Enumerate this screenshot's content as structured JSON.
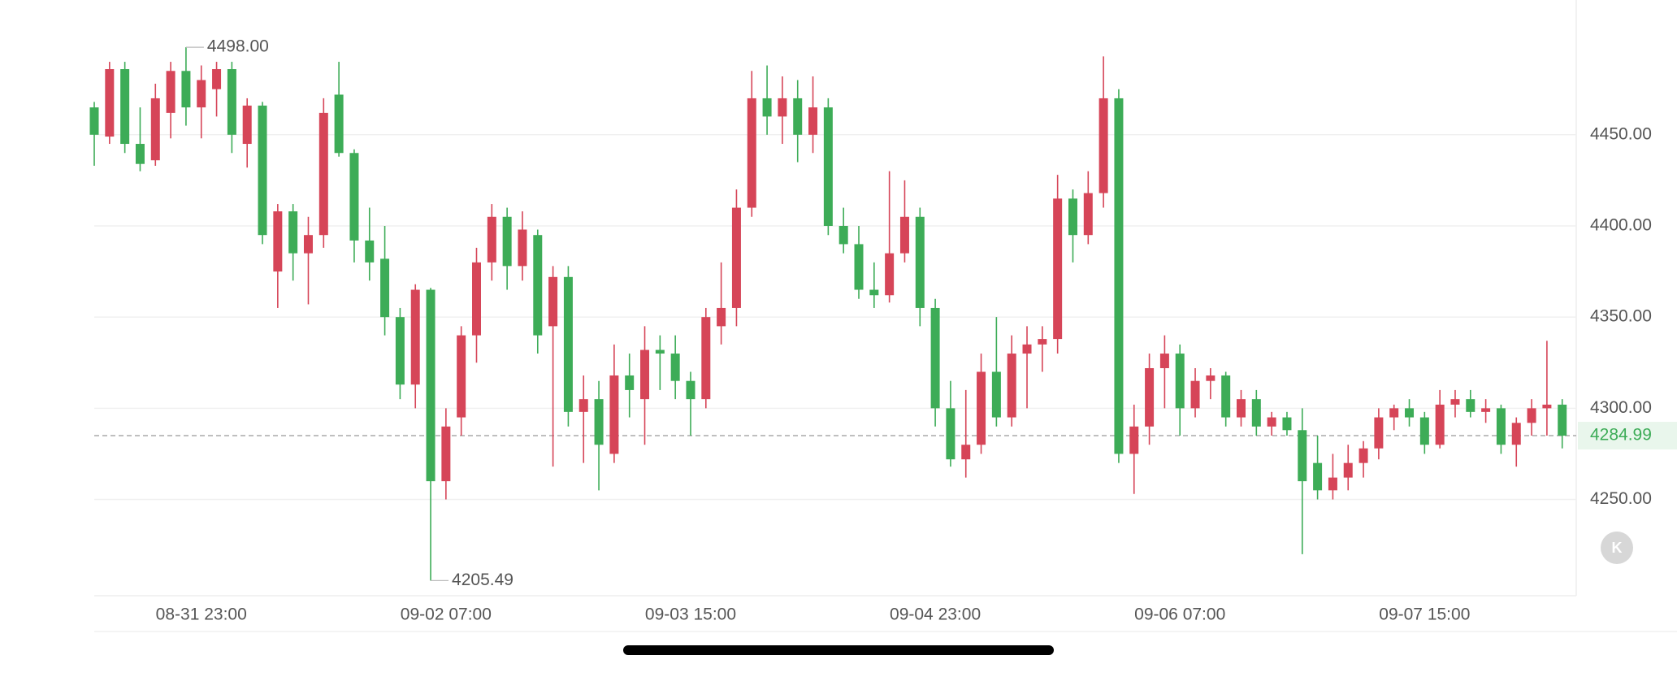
{
  "chart_data": {
    "type": "candlestick",
    "categories": [
      null,
      null,
      null,
      null,
      null,
      null,
      null,
      "08-31 23:00",
      null,
      null,
      null,
      null,
      null,
      null,
      null,
      null,
      null,
      null,
      null,
      null,
      null,
      null,
      null,
      "09-02 07:00",
      null,
      null,
      null,
      null,
      null,
      null,
      null,
      null,
      null,
      null,
      null,
      null,
      null,
      null,
      null,
      "09-03 15:00",
      null,
      null,
      null,
      null,
      null,
      null,
      null,
      null,
      null,
      null,
      null,
      null,
      null,
      null,
      null,
      "09-04 23:00",
      null,
      null,
      null,
      null,
      null,
      null,
      null,
      null,
      null,
      null,
      null,
      null,
      null,
      null,
      null,
      "09-06 07:00",
      null,
      null,
      null,
      null,
      null,
      null,
      null,
      null,
      null,
      null,
      null,
      null,
      null,
      null,
      null,
      "09-07 15:00",
      null,
      null,
      null,
      null,
      null,
      null,
      null,
      null,
      null
    ],
    "open": [
      4465,
      4449,
      4486,
      4445,
      4436,
      4462,
      4485,
      4465,
      4475,
      4486,
      4445,
      4466,
      4375,
      4408,
      4385,
      4395,
      4472,
      4440,
      4392,
      4382,
      4350,
      4313,
      4365,
      4260,
      4295,
      4340,
      4380,
      4405,
      4378,
      4395,
      4345,
      4372,
      4298,
      4305,
      4275,
      4318,
      4305,
      4332,
      4330,
      4315,
      4305,
      4345,
      4355,
      4410,
      4470,
      4460,
      4470,
      4450,
      4465,
      4400,
      4390,
      4365,
      4362,
      4385,
      4405,
      4355,
      4300,
      4272,
      4280,
      4320,
      4295,
      4330,
      4335,
      4338,
      4415,
      4395,
      4418,
      4470,
      4275,
      4290,
      4322,
      4330,
      4300,
      4315,
      4318,
      4295,
      4305,
      4290,
      4295,
      4288,
      4270,
      4255,
      4262,
      4270,
      4278,
      4295,
      4300,
      4295,
      4280,
      4302,
      4305,
      4298,
      4300,
      4280,
      4292,
      4300,
      4302
    ],
    "high": [
      4468,
      4490,
      4490,
      4465,
      4478,
      4490,
      4498,
      4488,
      4490,
      4490,
      4470,
      4468,
      4412,
      4412,
      4405,
      4470,
      4490,
      4442,
      4410,
      4400,
      4355,
      4368,
      4366,
      4300,
      4345,
      4388,
      4412,
      4410,
      4408,
      4398,
      4378,
      4378,
      4318,
      4315,
      4335,
      4330,
      4345,
      4340,
      4340,
      4320,
      4355,
      4380,
      4420,
      4485,
      4488,
      4482,
      4480,
      4482,
      4470,
      4410,
      4400,
      4380,
      4430,
      4425,
      4410,
      4360,
      4315,
      4310,
      4330,
      4350,
      4340,
      4345,
      4345,
      4428,
      4420,
      4430,
      4493,
      4475,
      4302,
      4330,
      4340,
      4335,
      4322,
      4322,
      4320,
      4310,
      4310,
      4298,
      4298,
      4300,
      4285,
      4275,
      4280,
      4282,
      4300,
      4302,
      4305,
      4298,
      4310,
      4310,
      4310,
      4305,
      4302,
      4295,
      4305,
      4337,
      4305
    ],
    "low": [
      4433,
      4445,
      4440,
      4430,
      4433,
      4448,
      4455,
      4448,
      4460,
      4440,
      4432,
      4390,
      4355,
      4370,
      4357,
      4388,
      4438,
      4380,
      4370,
      4340,
      4305,
      4300,
      4205.49,
      4250,
      4285,
      4325,
      4370,
      4365,
      4370,
      4330,
      4268,
      4290,
      4270,
      4255,
      4270,
      4295,
      4280,
      4310,
      4305,
      4285,
      4300,
      4335,
      4345,
      4405,
      4450,
      4445,
      4435,
      4440,
      4395,
      4385,
      4360,
      4355,
      4358,
      4380,
      4345,
      4290,
      4268,
      4262,
      4275,
      4290,
      4290,
      4300,
      4320,
      4330,
      4380,
      4390,
      4410,
      4270,
      4253,
      4280,
      4300,
      4285,
      4295,
      4305,
      4290,
      4290,
      4285,
      4285,
      4285,
      4220,
      4250,
      4250,
      4255,
      4262,
      4272,
      4288,
      4290,
      4275,
      4278,
      4295,
      4295,
      4292,
      4275,
      4268,
      4285,
      4285,
      4278
    ],
    "close": [
      4450,
      4486,
      4445,
      4434,
      4470,
      4485,
      4465,
      4480,
      4486,
      4450,
      4466,
      4395,
      4408,
      4385,
      4395,
      4462,
      4440,
      4392,
      4380,
      4350,
      4313,
      4365,
      4260,
      4290,
      4340,
      4380,
      4405,
      4378,
      4398,
      4340,
      4372,
      4298,
      4305,
      4280,
      4318,
      4310,
      4332,
      4330,
      4315,
      4305,
      4350,
      4355,
      4410,
      4470,
      4460,
      4470,
      4450,
      4465,
      4400,
      4390,
      4365,
      4362,
      4385,
      4405,
      4355,
      4300,
      4272,
      4280,
      4320,
      4295,
      4330,
      4335,
      4338,
      4415,
      4395,
      4418,
      4470,
      4275,
      4290,
      4322,
      4330,
      4300,
      4315,
      4318,
      4295,
      4305,
      4290,
      4295,
      4288,
      4260,
      4255,
      4262,
      4270,
      4278,
      4295,
      4300,
      4295,
      4280,
      4302,
      4305,
      4298,
      4300,
      4280,
      4292,
      4300,
      4302,
      4284.99
    ],
    "up_color": "#d64558",
    "down_color": "#3dac57",
    "ylim": [
      4197.2,
      4523.9
    ],
    "yticks": [
      {
        "value": 4250,
        "label": "4250.00"
      },
      {
        "value": 4300,
        "label": "4300.00"
      },
      {
        "value": 4350,
        "label": "4350.00"
      },
      {
        "value": 4400,
        "label": "4400.00"
      },
      {
        "value": 4450,
        "label": "4450.00"
      }
    ],
    "grid": true,
    "high_marker": {
      "value": 4498,
      "label": "4498.00"
    },
    "low_marker": 4205.49,
    "last_price": 4284.99
  },
  "controls": {
    "k_button": "K"
  }
}
